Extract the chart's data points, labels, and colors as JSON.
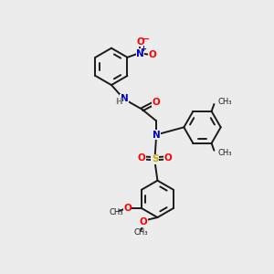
{
  "background_color": "#ececec",
  "atoms": {
    "N_blue": "#0000cc",
    "O_red": "#ff0000",
    "S_yellow": "#ccaa00",
    "H_gray": "#777777",
    "C_black": "#1a1a1a"
  },
  "lw": 1.4,
  "ring_r": 0.72,
  "xlim": [
    -1.5,
    8.5
  ],
  "ylim": [
    -1.0,
    9.5
  ]
}
